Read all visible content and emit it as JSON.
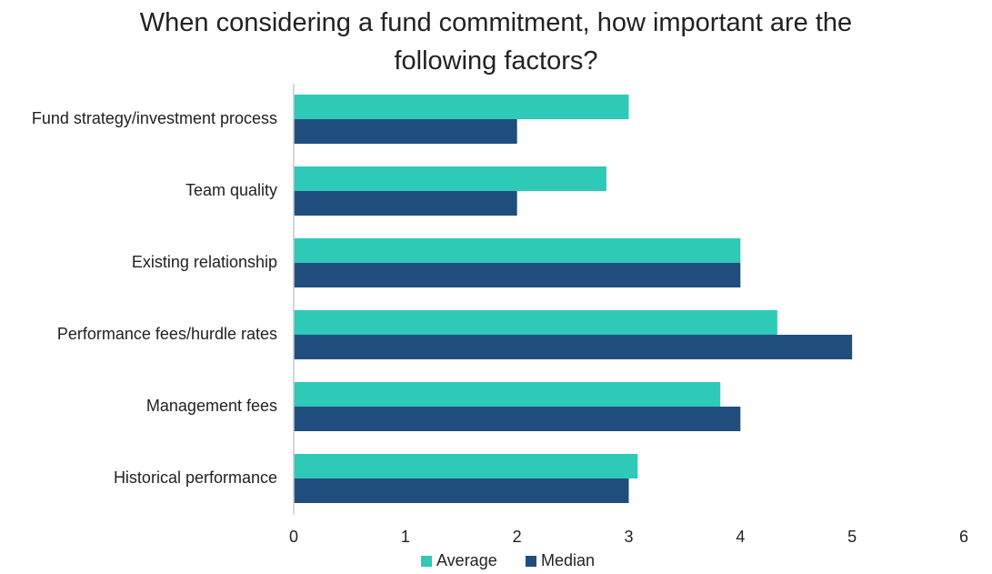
{
  "chart_data": {
    "type": "bar",
    "orientation": "horizontal",
    "title": "When considering a fund commitment, how important are the following factors?",
    "title_lines": [
      "When considering a fund commitment, how important are the",
      "following factors?"
    ],
    "categories": [
      "Fund strategy/investment process",
      "Team quality",
      "Existing relationship",
      "Performance fees/hurdle rates",
      "Management fees",
      "Historical performance"
    ],
    "series": [
      {
        "name": "Average",
        "color": "#2EC9B7",
        "values": [
          3.0,
          2.8,
          4.0,
          4.33,
          3.82,
          3.08
        ]
      },
      {
        "name": "Median",
        "color": "#1F4E7E",
        "values": [
          2,
          2,
          4,
          5,
          4,
          3
        ]
      }
    ],
    "xlim": [
      0,
      6
    ],
    "ticks": [
      "0",
      "1",
      "2",
      "3",
      "4",
      "5",
      "6"
    ],
    "xlabel": "",
    "ylabel": "",
    "grid": false,
    "legend": "bottom"
  }
}
